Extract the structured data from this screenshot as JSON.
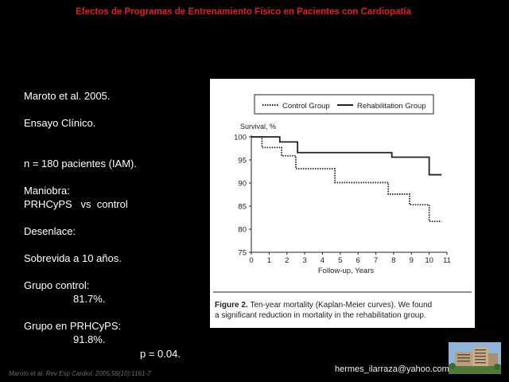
{
  "slide_title": "Efectos de Programas de Entrenamiento Físico en Pacientes con Cardiopatía",
  "bullets": [
    {
      "text": "Maroto et al. 2005.",
      "indent": false,
      "gap_after": 1
    },
    {
      "text": "Ensayo Clínico.",
      "indent": false,
      "gap_after": 2
    },
    {
      "text": "n = 180 pacientes (IAM).",
      "indent": false,
      "gap_after": 1
    },
    {
      "text": "Maniobra:",
      "indent": false,
      "gap_after": 0
    },
    {
      "text": "PRHCyPS   vs  control",
      "indent": false,
      "gap_after": 1
    },
    {
      "text": "Desenlace:",
      "indent": false,
      "gap_after": 1
    },
    {
      "text": "Sobrevida a 10 años.",
      "indent": false,
      "gap_after": 1
    },
    {
      "text": "Grupo control:",
      "indent": false,
      "gap_after": 0
    },
    {
      "text": "81.7%.",
      "indent": true,
      "gap_after": 1
    },
    {
      "text": "Grupo en PRHCyPS:",
      "indent": false,
      "gap_after": 0
    },
    {
      "text": "91.8%.",
      "indent": true,
      "gap_after": 0
    }
  ],
  "p_value": "p = 0.04.",
  "citation": "Maroto et al. Rev Esp Cardiol. 2005;58(10):1161-7",
  "email": "hermes_ilarraza@yahoo.com",
  "figure_caption_label": "Figure 2.",
  "figure_caption_text": "Ten-year mortality (Kaplan-Meier curves). We found a significant reduction in mortality in the rehabilitation group.",
  "chart_data": {
    "type": "line",
    "subtype": "kaplan-meier step curves",
    "ylabel": "Survival, %",
    "xlabel": "Follow-up, Years",
    "xlim": [
      0,
      11
    ],
    "ylim": [
      75,
      100
    ],
    "x_ticks": [
      0,
      1,
      2,
      3,
      4,
      5,
      6,
      7,
      8,
      9,
      10,
      11
    ],
    "y_ticks": [
      75,
      80,
      85,
      90,
      95,
      100
    ],
    "grid": false,
    "legend_position": "top",
    "series": [
      {
        "name": "Control Group",
        "style": "dotted",
        "color": "#222222",
        "steps": [
          [
            0,
            100
          ],
          [
            0.6,
            97.7
          ],
          [
            1.7,
            95.9
          ],
          [
            2.5,
            93.1
          ],
          [
            4.7,
            90.1
          ],
          [
            7.7,
            87.6
          ],
          [
            8.9,
            85.3
          ],
          [
            10.0,
            81.7
          ],
          [
            10.7,
            81.7
          ]
        ]
      },
      {
        "name": "Rehabilitation Group",
        "style": "solid",
        "color": "#222222",
        "steps": [
          [
            0,
            100
          ],
          [
            1.6,
            98.9
          ],
          [
            2.6,
            96.6
          ],
          [
            7.9,
            95.6
          ],
          [
            10.0,
            91.8
          ],
          [
            10.7,
            91.8
          ]
        ]
      }
    ]
  },
  "colors": {
    "background": "#000000",
    "title": "#e11d1d",
    "figure_bg": "#ffffff"
  }
}
